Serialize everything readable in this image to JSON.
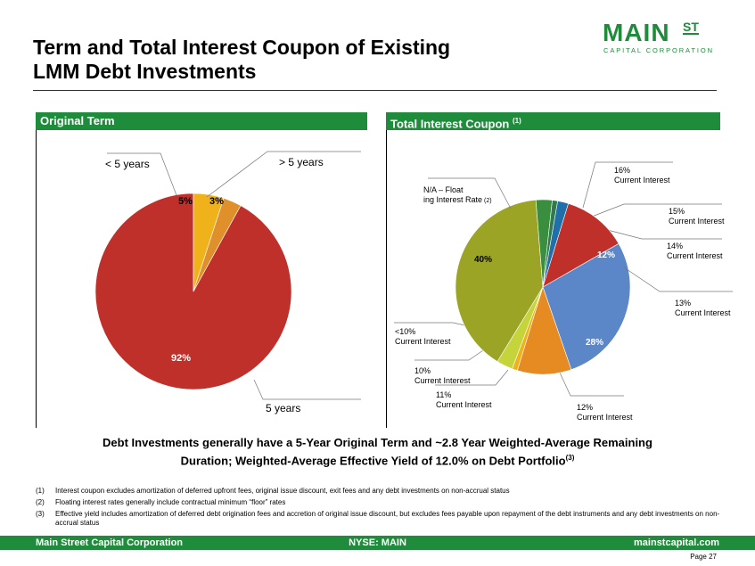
{
  "header": {
    "title_line1": "Term and Total Interest Coupon of Existing",
    "title_line2": "LMM Debt Investments",
    "logo_main": "MAIN",
    "logo_st": "ST",
    "logo_sub": "CAPITAL CORPORATION"
  },
  "sections": {
    "left_title": "Original Term",
    "right_title": "Total Interest Coupon",
    "right_title_note": "(1)"
  },
  "chart_data": [
    {
      "type": "pie",
      "title": "Original Term",
      "slices": [
        {
          "label": "5 years",
          "value": 92,
          "value_label": "92%",
          "color": "#c0302a"
        },
        {
          "label": "< 5 years",
          "value": 5,
          "value_label": "5%",
          "color": "#f0b21b"
        },
        {
          "label": "> 5 years",
          "value": 3,
          "value_label": "3%",
          "color": "#e0902a"
        }
      ]
    },
    {
      "type": "pie",
      "title": "Total Interest Coupon",
      "slices": [
        {
          "label": "12% Current Interest",
          "value": 28,
          "value_label": "28%",
          "color": "#5b86c8"
        },
        {
          "label": "11% Current Interest",
          "value": 10,
          "value_label": "10%",
          "color": "#e58b22"
        },
        {
          "label": "10% Current Interest",
          "value": 1,
          "value_label": "1%",
          "color": "#f0b21b"
        },
        {
          "label": "<10% Current Interest",
          "value": 3,
          "value_label": "3%",
          "color": "#c5d43a"
        },
        {
          "label": "N/A – Floating Interest Rate",
          "label_note": "(2)",
          "value": 40,
          "value_label": "40%",
          "color": "#9ba424"
        },
        {
          "label": "16% Current Interest",
          "value": 3,
          "value_label": "3%",
          "color": "#3a8f3e"
        },
        {
          "label": "15% Current Interest",
          "value": 1,
          "value_label": "1%",
          "color": "#2f7a4f"
        },
        {
          "label": "14% Current Interest",
          "value": 2,
          "value_label": "2%",
          "color": "#1f6fa8"
        },
        {
          "label": "13% Current Interest",
          "value": 12,
          "value_label": "12%",
          "color": "#c0302a"
        }
      ]
    }
  ],
  "summary": {
    "line1": "Debt Investments generally have a 5-Year Original Term and ~2.8 Year Weighted-Average Remaining",
    "line2": "Duration;   Weighted-Average Effective Yield of 12.0% on Debt Portfolio",
    "line2_note": "(3)"
  },
  "footnotes": [
    {
      "num": "(1)",
      "text": "Interest coupon excludes amortization of deferred upfront fees, original issue discount, exit fees and any debt investments on non-accrual status"
    },
    {
      "num": "(2)",
      "text": "Floating interest rates generally include contractual minimum “floor” rates"
    },
    {
      "num": "(3)",
      "text": "Effective yield includes amortization of deferred debt origination fees and accretion of original issue discount, but excludes fees payable upon repayment of the debt instruments and any debt investments on non-accrual status"
    }
  ],
  "footer": {
    "left": "Main Street Capital Corporation",
    "center": "NYSE: MAIN",
    "right": "mainstcapital.com",
    "page": "Page  27"
  }
}
